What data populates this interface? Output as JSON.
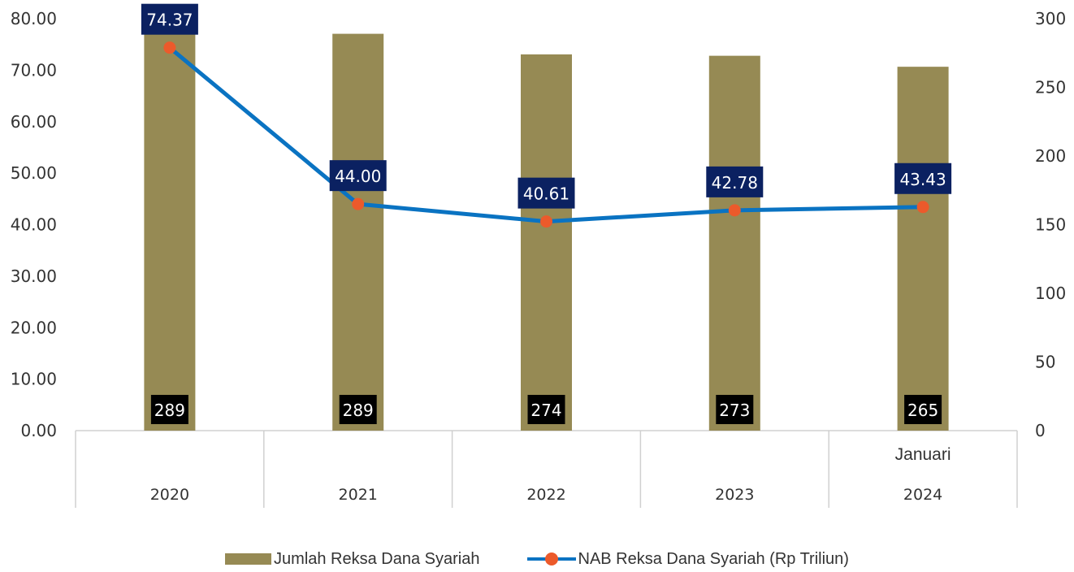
{
  "chart_data": {
    "type": "bar",
    "categories": [
      "2020",
      "2021",
      "2022",
      "2023",
      "2024"
    ],
    "category_sublabels": [
      "",
      "",
      "",
      "",
      "Januari"
    ],
    "bar_series": {
      "name": "Jumlah Reksa Dana Syariah",
      "values": [
        289,
        289,
        274,
        273,
        265
      ],
      "labels": [
        "289",
        "289",
        "274",
        "273",
        "265"
      ],
      "axis": "right",
      "color": "#968a54"
    },
    "line_series": {
      "name": "NAB Reksa Dana Syariah (Rp Triliun)",
      "values": [
        74.37,
        44.0,
        40.61,
        42.78,
        43.43
      ],
      "labels": [
        "74.37",
        "44.00",
        "40.61",
        "42.78",
        "43.43"
      ],
      "axis": "left",
      "color": "#0a73c2",
      "marker_color": "#ec5a2b"
    },
    "left_axis": {
      "ylim": [
        0,
        80
      ],
      "ticks": [
        "0.00",
        "10.00",
        "20.00",
        "30.00",
        "40.00",
        "50.00",
        "60.00",
        "70.00",
        "80.00"
      ]
    },
    "right_axis": {
      "ylim": [
        0,
        300
      ],
      "ticks": [
        "0",
        "50",
        "100",
        "150",
        "200",
        "250",
        "300"
      ]
    },
    "label_box_colors": {
      "line": "#0b2161",
      "bar": "#000000"
    },
    "grid": false,
    "legend_position": "bottom"
  }
}
